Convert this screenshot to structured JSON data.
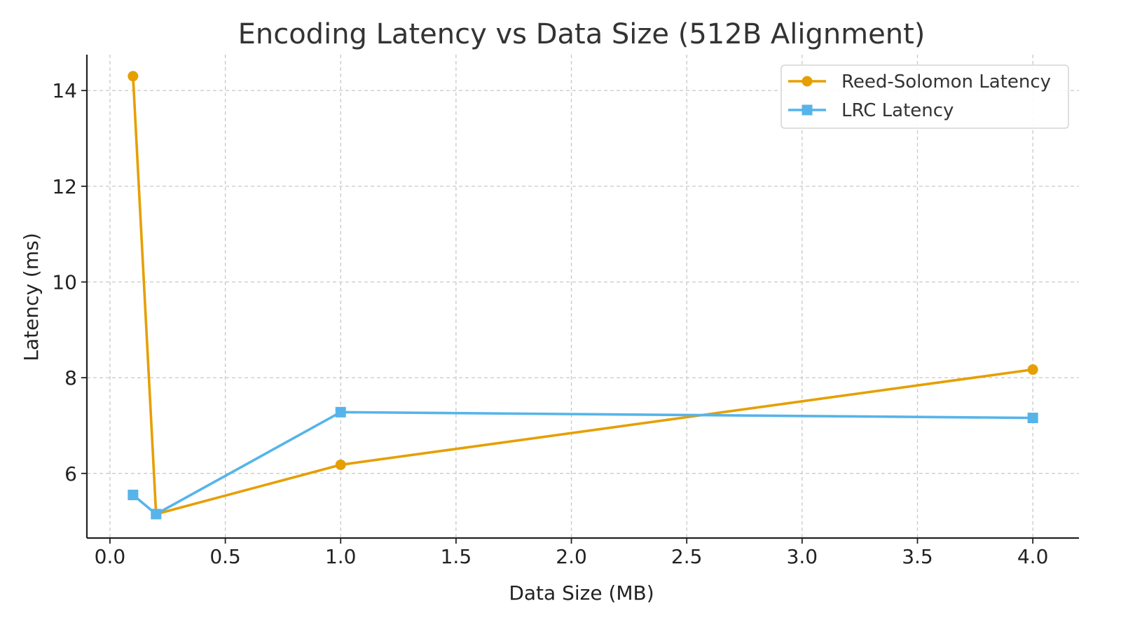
{
  "chart_data": {
    "type": "line",
    "title": "Encoding Latency vs Data Size (512B Alignment)",
    "xlabel": "Data Size (MB)",
    "ylabel": "Latency (ms)",
    "xlim": [
      -0.1,
      4.2
    ],
    "ylim": [
      4.65,
      14.75
    ],
    "xticks": [
      0.0,
      0.5,
      1.0,
      1.5,
      2.0,
      2.5,
      3.0,
      3.5,
      4.0
    ],
    "xtick_labels": [
      "0.0",
      "0.5",
      "1.0",
      "1.5",
      "2.0",
      "2.5",
      "3.0",
      "3.5",
      "4.0"
    ],
    "yticks": [
      6,
      8,
      10,
      12,
      14
    ],
    "ytick_labels": [
      "6",
      "8",
      "10",
      "12",
      "14"
    ],
    "grid": true,
    "legend_position": "top-right",
    "series": [
      {
        "name": "Reed-Solomon Latency",
        "color": "#E69F00",
        "marker": "circle",
        "x": [
          0.1,
          0.2,
          1.0,
          4.0
        ],
        "y": [
          14.3,
          5.15,
          6.18,
          8.17
        ]
      },
      {
        "name": "LRC Latency",
        "color": "#56B4E9",
        "marker": "square",
        "x": [
          0.1,
          0.2,
          1.0,
          4.0
        ],
        "y": [
          5.55,
          5.15,
          7.28,
          7.16
        ]
      }
    ]
  }
}
